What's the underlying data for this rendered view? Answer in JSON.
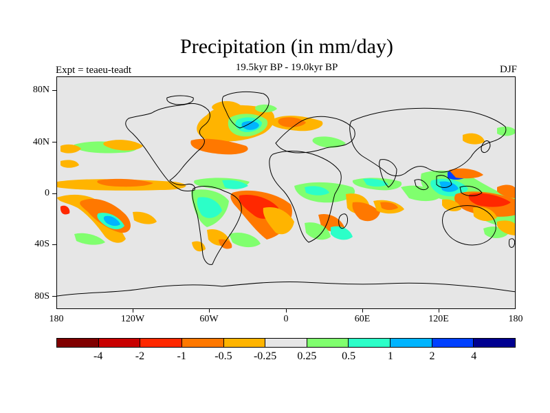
{
  "title": "Precipitation (in mm/day)",
  "subtitle": "19.5kyr BP - 19.0kyr BP",
  "experiment_label": "Expt = teaeu-teadt",
  "season_label": "DJF",
  "latitude_labels": [
    "80N",
    "40N",
    "0",
    "40S",
    "80S"
  ],
  "longitude_labels": [
    "180",
    "120W",
    "60W",
    "0",
    "60E",
    "120E",
    "180"
  ],
  "colorbar": {
    "colors": [
      "#800000",
      "#c80000",
      "#ff2800",
      "#ff7800",
      "#ffb400",
      "#e6e6e6",
      "#80ff6e",
      "#2cffc8",
      "#00b4ff",
      "#0040ff",
      "#000090"
    ],
    "tick_labels": [
      "-4",
      "-2",
      "-1",
      "-0.5",
      "-0.25",
      "0.25",
      "0.5",
      "1",
      "2",
      "4"
    ]
  },
  "colors": {
    "background": "#ffffff",
    "ocean_land_neutral": "#e6e6e6",
    "coastline": "#000000"
  }
}
